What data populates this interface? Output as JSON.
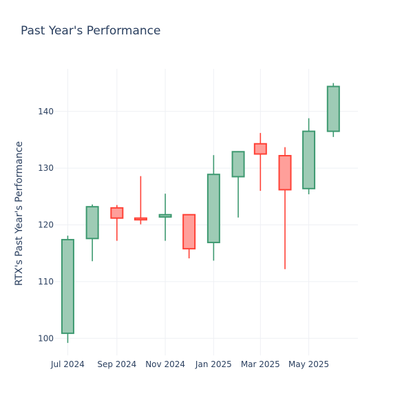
{
  "chart_data": {
    "type": "candlestick",
    "title": "Past Year's Performance",
    "xlabel": "",
    "ylabel": "RTX's Past Year's Performance",
    "ylim": [
      97,
      147.5
    ],
    "yticks": [
      100,
      110,
      120,
      130,
      140
    ],
    "grid": true,
    "legend": "none",
    "colors": {
      "increasing": "#3d9970",
      "increasing_fill": "#9ecbb5",
      "decreasing": "#ff4136",
      "decreasing_fill": "#ff9f9a"
    },
    "x_range": [
      "2024-06-15",
      "2025-07-02"
    ],
    "x_ticks": [
      {
        "date": "2024-07-01",
        "label": "Jul 2024"
      },
      {
        "date": "2024-09-01",
        "label": "Sep 2024"
      },
      {
        "date": "2024-11-01",
        "label": "Nov 2024"
      },
      {
        "date": "2025-01-01",
        "label": "Jan 2025"
      },
      {
        "date": "2025-03-01",
        "label": "Mar 2025"
      },
      {
        "date": "2025-05-01",
        "label": "May 2025"
      }
    ],
    "candles": [
      {
        "date": "2024-07-01",
        "open": 100.9,
        "high": 118.1,
        "low": 99.2,
        "close": 117.4
      },
      {
        "date": "2024-08-01",
        "open": 117.6,
        "high": 123.6,
        "low": 113.6,
        "close": 123.2
      },
      {
        "date": "2024-09-01",
        "open": 123.0,
        "high": 123.5,
        "low": 117.2,
        "close": 121.2
      },
      {
        "date": "2024-10-01",
        "open": 121.2,
        "high": 128.6,
        "low": 120.1,
        "close": 120.9
      },
      {
        "date": "2024-11-01",
        "open": 121.4,
        "high": 125.5,
        "low": 117.2,
        "close": 121.8
      },
      {
        "date": "2024-12-01",
        "open": 121.8,
        "high": 121.8,
        "low": 114.1,
        "close": 115.8
      },
      {
        "date": "2025-01-01",
        "open": 116.9,
        "high": 132.3,
        "low": 113.7,
        "close": 128.9
      },
      {
        "date": "2025-02-01",
        "open": 128.5,
        "high": 133.0,
        "low": 121.3,
        "close": 132.9
      },
      {
        "date": "2025-03-01",
        "open": 134.3,
        "high": 136.2,
        "low": 126.0,
        "close": 132.5
      },
      {
        "date": "2025-04-01",
        "open": 132.2,
        "high": 133.7,
        "low": 112.2,
        "close": 126.2
      },
      {
        "date": "2025-05-01",
        "open": 126.4,
        "high": 138.8,
        "low": 125.4,
        "close": 136.5
      },
      {
        "date": "2025-06-01",
        "open": 136.5,
        "high": 145.0,
        "low": 135.5,
        "close": 144.4
      }
    ]
  }
}
